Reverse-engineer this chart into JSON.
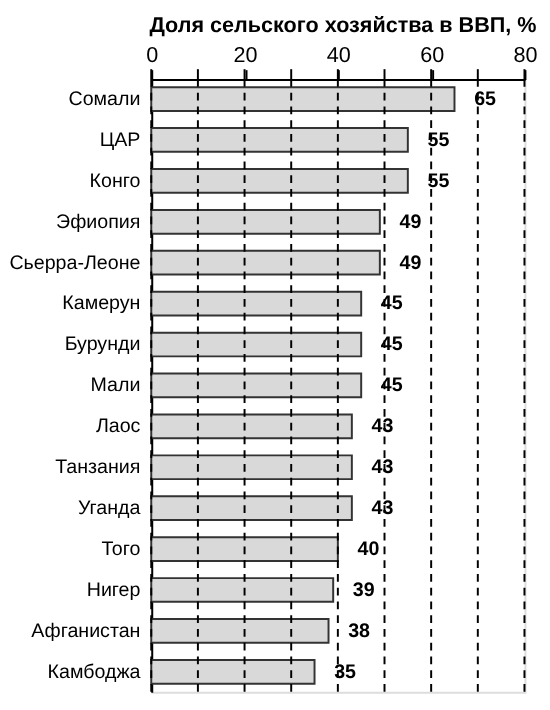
{
  "chart_data": {
    "type": "bar",
    "orientation": "horizontal",
    "title": "Доля сельского хозяйства в ВВП, %",
    "categories": [
      "Сомали",
      "ЦАР",
      "Конго",
      "Эфиопия",
      "Сьерра-Леоне",
      "Камерун",
      "Бурунди",
      "Мали",
      "Лаос",
      "Танзания",
      "Уганда",
      "Того",
      "Нигер",
      "Афганистан",
      "Камбоджа"
    ],
    "values": [
      65,
      55,
      55,
      49,
      49,
      45,
      45,
      45,
      43,
      43,
      43,
      40,
      39,
      38,
      35
    ],
    "color": "#d9d9d9",
    "xlim": [
      0,
      80
    ],
    "xticks": [
      0,
      {
        "value": 10,
        "label": null
      },
      20,
      {
        "value": 30,
        "label": null
      },
      40,
      {
        "value": 50,
        "label": null
      },
      60,
      {
        "value": 70,
        "label": null
      },
      80
    ],
    "grid": "x",
    "data_labels": true
  }
}
